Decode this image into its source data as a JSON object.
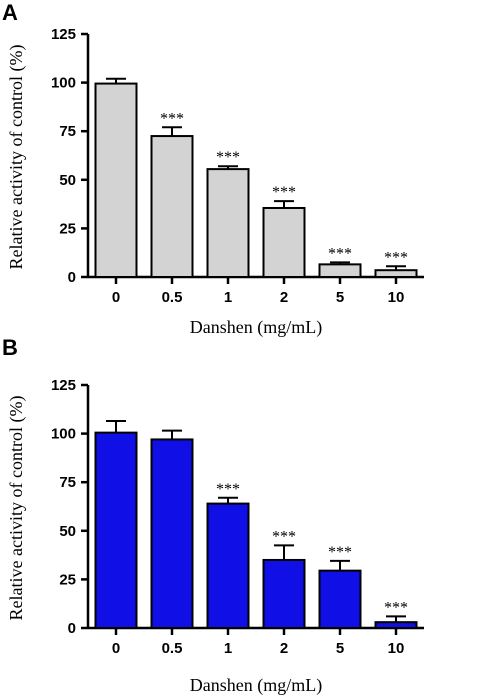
{
  "chart_data": [
    {
      "panel": "A",
      "type": "bar",
      "categories": [
        "0",
        "0.5",
        "1",
        "2",
        "5",
        "10"
      ],
      "values": [
        99.5,
        72.5,
        55.5,
        35.5,
        6.5,
        3.5
      ],
      "errors": [
        2.5,
        4.5,
        1.5,
        3.5,
        1.0,
        2.0
      ],
      "significance": [
        "",
        "***",
        "***",
        "***",
        "***",
        "***"
      ],
      "xlabel": "Danshen (mg/mL)",
      "ylabel": "Relative activity of control (%)",
      "ylim": [
        0,
        125
      ],
      "yticks": [
        0,
        25,
        50,
        75,
        100,
        125
      ],
      "bar_color": "#d3d3d3",
      "grid": false
    },
    {
      "panel": "B",
      "type": "bar",
      "categories": [
        "0",
        "0.5",
        "1",
        "2",
        "5",
        "10"
      ],
      "values": [
        100.5,
        97,
        64,
        35,
        29.5,
        3
      ],
      "errors": [
        6,
        4.5,
        3,
        7.5,
        5,
        3
      ],
      "significance": [
        "",
        "",
        "***",
        "***",
        "***",
        "***"
      ],
      "xlabel": "Danshen (mg/mL)",
      "ylabel": "Relative activity of control (%)",
      "ylim": [
        0,
        125
      ],
      "yticks": [
        0,
        25,
        50,
        75,
        100,
        125
      ],
      "bar_color": "#1010e6",
      "grid": false
    }
  ]
}
